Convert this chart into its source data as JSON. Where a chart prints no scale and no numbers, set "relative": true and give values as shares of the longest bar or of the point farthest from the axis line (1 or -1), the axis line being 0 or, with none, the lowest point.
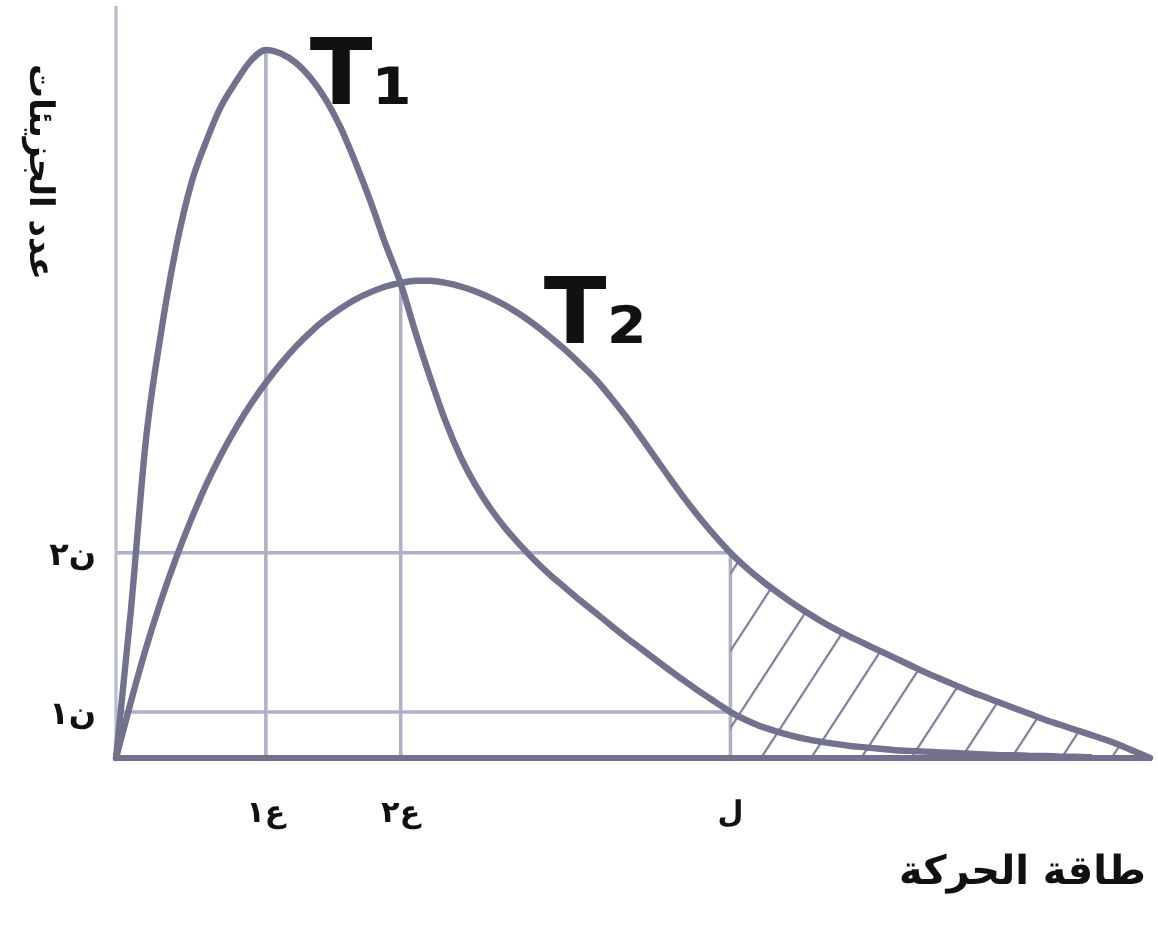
{
  "chart_data": {
    "type": "line",
    "xlabel": "طاقة الحركة",
    "ylabel": "عدد الجزيئات",
    "relative": true,
    "line_style": "solid",
    "categories": [
      null,
      null,
      null,
      null,
      null,
      null,
      null,
      null,
      null,
      null,
      "ع١",
      null,
      null,
      null,
      null,
      null,
      null,
      null,
      null,
      "ع٢",
      null,
      null,
      null,
      null,
      null,
      null,
      null,
      null,
      null,
      null,
      null,
      null,
      null,
      null,
      null,
      null,
      null,
      null,
      null,
      null,
      null,
      "ل",
      null,
      null,
      null,
      null,
      null,
      null,
      null,
      null,
      null,
      null,
      null,
      null,
      null,
      null,
      null,
      null,
      null,
      null,
      null,
      null,
      null,
      null,
      null,
      null,
      null,
      null,
      null,
      null
    ],
    "series": [
      {
        "name": "T₁",
        "color": "#72728e",
        "values": [
          0,
          0.21,
          0.45,
          0.6,
          0.72,
          0.81,
          0.87,
          0.92,
          0.955,
          0.985,
          1,
          0.995,
          0.982,
          0.96,
          0.93,
          0.89,
          0.84,
          0.785,
          0.725,
          0.67,
          0.6,
          0.535,
          0.475,
          0.425,
          0.385,
          0.352,
          0.324,
          0.3,
          0.278,
          0.258,
          0.24,
          0.222,
          0.205,
          0.188,
          0.171,
          0.155,
          0.139,
          0.123,
          0.108,
          0.093,
          0.079,
          0.065,
          0.054,
          0.045,
          0.038,
          0.032,
          0.027,
          0.023,
          0.02,
          0.017,
          0.015,
          0.013,
          0.011,
          0.01,
          0.009,
          0.008,
          0.007,
          0.006,
          0.005,
          0.004,
          0.004,
          0.003,
          0.003,
          0.002,
          0.002,
          0.001,
          null,
          null,
          null,
          null
        ]
      },
      {
        "name": "T₂",
        "color": "#72728e",
        "values": [
          0,
          0.08,
          0.155,
          0.222,
          0.282,
          0.336,
          0.385,
          0.428,
          0.466,
          0.5,
          0.53,
          0.557,
          0.581,
          0.602,
          0.62,
          0.635,
          0.648,
          0.658,
          0.666,
          0.671,
          0.674,
          0.674,
          0.671,
          0.666,
          0.659,
          0.65,
          0.639,
          0.626,
          0.611,
          0.594,
          0.576,
          0.556,
          0.535,
          0.51,
          0.483,
          0.454,
          0.424,
          0.394,
          0.365,
          0.338,
          0.313,
          0.29,
          0.27,
          0.252,
          0.236,
          0.221,
          0.207,
          0.194,
          0.182,
          0.171,
          0.161,
          0.151,
          0.141,
          0.131,
          0.121,
          0.112,
          0.103,
          0.094,
          0.086,
          0.078,
          0.07,
          0.062,
          0.054,
          0.047,
          0.04,
          0.033,
          0.026,
          0.018,
          0.009,
          0
        ]
      },
      {
        "type": "area",
        "color": "#7c7c98",
        "values": [
          null,
          null,
          null,
          null,
          null,
          null,
          null,
          null,
          null,
          null,
          null,
          null,
          null,
          null,
          null,
          null,
          null,
          null,
          null,
          null,
          null,
          null,
          null,
          null,
          null,
          null,
          null,
          null,
          null,
          null,
          null,
          null,
          null,
          null,
          null,
          null,
          null,
          null,
          null,
          null,
          null,
          0.29,
          0.27,
          0.252,
          0.236,
          0.221,
          0.207,
          0.194,
          0.182,
          0.171,
          0.161,
          0.151,
          0.141,
          0.131,
          0.121,
          0.112,
          0.103,
          0.094,
          0.086,
          0.078,
          0.07,
          0.062,
          0.054,
          0.047,
          0.04,
          0.033,
          0.026,
          0.018,
          0.009,
          0
        ]
      }
    ],
    "ref_lines": [
      {
        "axis": "x",
        "value": "ع١",
        "color": "#aeb0c8"
      },
      {
        "axis": "x",
        "value": "ع٢",
        "color": "#aeb0c8"
      },
      {
        "axis": "x",
        "value": "ل",
        "color": "#aeb0c8"
      },
      {
        "axis": "y",
        "value": 0.29,
        "label": "ن٢",
        "color": "#aeb0c8"
      },
      {
        "axis": "y",
        "value": 0.065,
        "label": "ن١",
        "color": "#aeb0c8"
      }
    ]
  }
}
